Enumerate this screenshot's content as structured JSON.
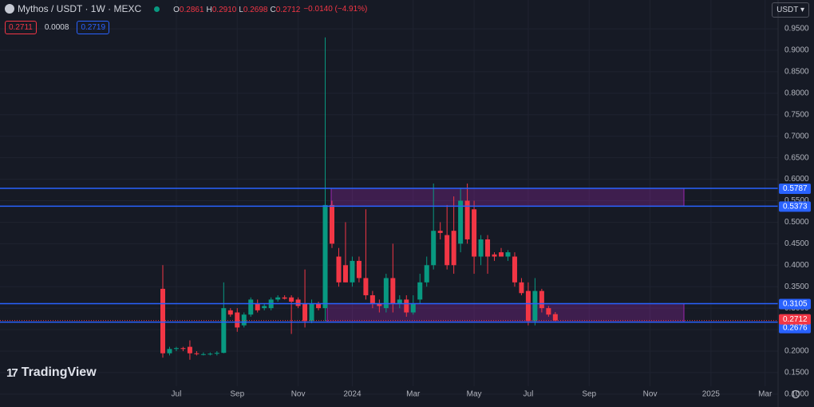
{
  "chart_data": {
    "type": "candlestick",
    "title": "Mythos / USDT · 1W · MEXC",
    "legend": [
      {
        "label": "O",
        "value": "0.2861"
      },
      {
        "label": "H",
        "value": "0.2910"
      },
      {
        "label": "L",
        "value": "0.2698"
      },
      {
        "label": "C",
        "value": "0.2712"
      }
    ],
    "change": "−0.0140 (−4.91%)",
    "bid": "0.2711",
    "spread": "0.0008",
    "ask": "0.2719",
    "currency": "USDT",
    "logo": "TradingView",
    "up_color": "#089981",
    "down_color": "#f23645",
    "level_color": "#2962ff",
    "categories": [
      null,
      null,
      "Jul",
      null,
      null,
      null,
      null,
      null,
      null,
      null,
      null,
      "Sep",
      null,
      null,
      null,
      null,
      null,
      null,
      null,
      null,
      "Nov",
      null,
      null,
      null,
      null,
      null,
      null,
      null,
      "2024",
      null,
      null,
      null,
      null,
      null,
      null,
      null,
      null,
      "Mar",
      null,
      null,
      null,
      null,
      null,
      null,
      null,
      null,
      "May",
      null,
      null,
      null,
      null,
      null,
      null,
      null,
      "Jul",
      null,
      null,
      null,
      null,
      null,
      null,
      null,
      null,
      "Sep",
      null,
      null,
      null,
      null,
      null,
      null,
      null,
      null,
      "Nov",
      null,
      null,
      null,
      null,
      null,
      null,
      null,
      null,
      "2025",
      null,
      null,
      null,
      null,
      null,
      null,
      null,
      "Mar"
    ],
    "open": [
      0.345,
      0.195,
      0.205,
      0.207,
      0.21,
      0.195,
      0.193,
      0.193,
      0.194,
      0.196,
      0.295,
      0.29,
      0.26,
      0.285,
      0.31,
      0.3,
      0.3,
      0.32,
      0.325,
      0.325,
      0.32,
      0.31,
      0.27,
      0.31,
      0.3,
      0.54,
      0.42,
      0.4,
      0.36,
      0.41,
      0.37,
      0.33,
      0.31,
      0.3,
      0.37,
      0.31,
      0.32,
      0.29,
      0.32,
      0.36,
      0.4,
      0.48,
      0.47,
      0.48,
      0.45,
      0.55,
      0.53,
      0.42,
      0.46,
      0.425,
      0.43,
      0.42,
      0.42,
      0.36,
      0.34,
      0.27,
      0.34,
      0.3,
      0.2861,
      null,
      null,
      null,
      null,
      null,
      null,
      null,
      null,
      null,
      null,
      null,
      null,
      null,
      null,
      null,
      null,
      null,
      null,
      null,
      null,
      null,
      null,
      null,
      null,
      null,
      null,
      null,
      null,
      null,
      null,
      null
    ],
    "high": [
      0.4,
      0.21,
      0.21,
      0.21,
      0.225,
      0.2,
      0.197,
      0.197,
      0.2,
      0.36,
      0.3,
      0.3,
      0.29,
      0.325,
      0.32,
      0.31,
      0.325,
      0.33,
      0.33,
      0.33,
      0.325,
      0.39,
      0.32,
      0.315,
      0.93,
      0.55,
      0.44,
      0.5,
      0.42,
      0.42,
      0.53,
      0.34,
      0.32,
      0.38,
      0.45,
      0.33,
      0.33,
      0.33,
      0.38,
      0.42,
      0.59,
      0.5,
      0.54,
      0.56,
      0.58,
      0.59,
      0.55,
      0.47,
      0.47,
      0.43,
      0.44,
      0.435,
      0.43,
      0.37,
      0.36,
      0.37,
      0.345,
      0.305,
      0.291,
      null,
      null,
      null,
      null,
      null,
      null,
      null,
      null,
      null,
      null,
      null,
      null,
      null,
      null,
      null,
      null,
      null,
      null,
      null,
      null,
      null,
      null,
      null,
      null,
      null,
      null,
      null,
      null,
      null,
      null,
      null
    ],
    "low": [
      0.185,
      0.19,
      0.2,
      0.2,
      0.18,
      0.19,
      0.19,
      0.19,
      0.19,
      0.195,
      0.28,
      0.245,
      0.255,
      0.28,
      0.29,
      0.295,
      0.295,
      0.315,
      0.32,
      0.24,
      0.3,
      0.255,
      0.265,
      0.295,
      0.27,
      0.44,
      0.35,
      0.36,
      0.35,
      0.36,
      0.32,
      0.3,
      0.29,
      0.29,
      0.29,
      0.3,
      0.28,
      0.285,
      0.31,
      0.35,
      0.39,
      0.46,
      0.39,
      0.38,
      0.43,
      0.45,
      0.38,
      0.4,
      0.38,
      0.41,
      0.42,
      0.41,
      0.35,
      0.33,
      0.26,
      0.26,
      0.29,
      0.28,
      0.2698,
      null,
      null,
      null,
      null,
      null,
      null,
      null,
      null,
      null,
      null,
      null,
      null,
      null,
      null,
      null,
      null,
      null,
      null,
      null,
      null,
      null,
      null,
      null,
      null,
      null,
      null,
      null,
      null,
      null,
      null,
      null
    ],
    "close": [
      0.195,
      0.205,
      0.207,
      0.205,
      0.195,
      0.193,
      0.193,
      0.194,
      0.196,
      0.3,
      0.285,
      0.255,
      0.285,
      0.32,
      0.295,
      0.305,
      0.32,
      0.325,
      0.322,
      0.315,
      0.305,
      0.27,
      0.31,
      0.3,
      0.54,
      0.45,
      0.36,
      0.36,
      0.41,
      0.37,
      0.33,
      0.31,
      0.305,
      0.37,
      0.31,
      0.32,
      0.29,
      0.31,
      0.36,
      0.4,
      0.48,
      0.475,
      0.4,
      0.4,
      0.55,
      0.46,
      0.42,
      0.46,
      0.42,
      0.42,
      0.42,
      0.43,
      0.36,
      0.335,
      0.27,
      0.34,
      0.3,
      0.285,
      0.2712,
      null,
      null,
      null,
      null,
      null,
      null,
      null,
      null,
      null,
      null,
      null,
      null,
      null,
      null,
      null,
      null,
      null,
      null,
      null,
      null,
      null,
      null,
      null,
      null,
      null,
      null,
      null,
      null,
      null,
      null,
      null
    ],
    "levels": [
      0.5787,
      0.5373,
      0.3105,
      0.2676
    ],
    "current_price": 0.2712,
    "ylim": [
      0.07,
      1.017
    ],
    "yticks": [
      {
        "value": 0.1,
        "label": "0.1000"
      },
      {
        "value": 0.15,
        "label": "0.1500"
      },
      {
        "value": 0.2,
        "label": "0.2000"
      },
      {
        "value": 0.25,
        "label": "0.2500"
      },
      {
        "value": 0.3,
        "label": "0.3000"
      },
      {
        "value": 0.35,
        "label": "0.3500"
      },
      {
        "value": 0.4,
        "label": "0.4000"
      },
      {
        "value": 0.45,
        "label": "0.4500"
      },
      {
        "value": 0.5,
        "label": "0.5000"
      },
      {
        "value": 0.55,
        "label": "0.5500"
      },
      {
        "value": 0.6,
        "label": "0.6000"
      },
      {
        "value": 0.65,
        "label": "0.6500"
      },
      {
        "value": 0.7,
        "label": "0.7000"
      },
      {
        "value": 0.75,
        "label": "0.7500"
      },
      {
        "value": 0.8,
        "label": "0.8000"
      },
      {
        "value": 0.85,
        "label": "0.8500"
      },
      {
        "value": 0.9,
        "label": "0.9000"
      },
      {
        "value": 0.95,
        "label": "0.9500"
      }
    ],
    "grid": true
  }
}
